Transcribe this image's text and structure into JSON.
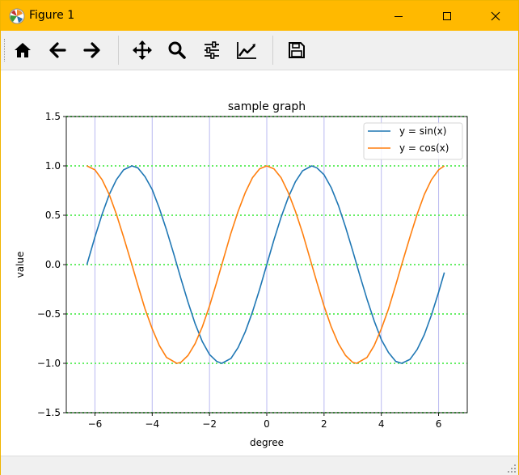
{
  "window": {
    "title": "Figure 1",
    "controls": [
      "minimize-icon",
      "maximize-icon",
      "close-icon"
    ]
  },
  "toolbar": {
    "buttons": [
      {
        "name": "home",
        "icon": "home-icon"
      },
      {
        "name": "back",
        "icon": "arrow-left-icon"
      },
      {
        "name": "forward",
        "icon": "arrow-right-icon"
      },
      {
        "name": "pan",
        "icon": "move-icon"
      },
      {
        "name": "zoom",
        "icon": "magnifier-icon"
      },
      {
        "name": "configure-subplots",
        "icon": "sliders-icon"
      },
      {
        "name": "edit-axis",
        "icon": "line-chart-icon"
      },
      {
        "name": "save",
        "icon": "floppy-disk-icon"
      }
    ]
  },
  "chart_data": {
    "type": "line",
    "title": "sample graph",
    "xlabel": "degree",
    "ylabel": "value",
    "xlim": [
      -7.0,
      7.0
    ],
    "ylim": [
      -1.5,
      1.5
    ],
    "xticks": [
      -6,
      -4,
      -2,
      0,
      2,
      4,
      6
    ],
    "xtick_labels": [
      "−6",
      "−4",
      "−2",
      "0",
      "2",
      "4",
      "6"
    ],
    "yticks": [
      1.5,
      1.0,
      0.5,
      0.0,
      -0.5,
      -1.0,
      -1.5
    ],
    "ytick_labels": [
      "1.5",
      "1.0",
      "0.5",
      "0.0",
      "−0.5",
      "−1.0",
      "−1.5"
    ],
    "grid": {
      "x": true,
      "y": true
    },
    "legend": "upper right",
    "series": [
      {
        "name": "y = sin(x)",
        "color": "#1f77b4",
        "x": [
          -6.28,
          -6.0,
          -5.75,
          -5.5,
          -5.25,
          -5.0,
          -4.71,
          -4.5,
          -4.25,
          -4.0,
          -3.75,
          -3.5,
          -3.25,
          -3.0,
          -2.75,
          -2.5,
          -2.25,
          -2.0,
          -1.75,
          -1.57,
          -1.25,
          -1.0,
          -0.75,
          -0.5,
          -0.25,
          0.0,
          0.25,
          0.5,
          0.75,
          1.0,
          1.25,
          1.57,
          1.75,
          2.0,
          2.25,
          2.5,
          2.75,
          3.0,
          3.25,
          3.5,
          3.75,
          4.0,
          4.25,
          4.5,
          4.71,
          5.0,
          5.25,
          5.5,
          5.75,
          6.0,
          6.2
        ],
        "y": [
          0.0,
          0.28,
          0.51,
          0.71,
          0.86,
          0.96,
          1.0,
          0.98,
          0.89,
          0.76,
          0.57,
          0.35,
          0.11,
          -0.14,
          -0.38,
          -0.6,
          -0.78,
          -0.91,
          -0.98,
          -1.0,
          -0.95,
          -0.84,
          -0.68,
          -0.48,
          -0.25,
          0.0,
          0.25,
          0.48,
          0.68,
          0.84,
          0.95,
          1.0,
          0.98,
          0.91,
          0.78,
          0.6,
          0.38,
          0.14,
          -0.11,
          -0.35,
          -0.57,
          -0.76,
          -0.89,
          -0.98,
          -1.0,
          -0.96,
          -0.86,
          -0.71,
          -0.51,
          -0.28,
          -0.08
        ]
      },
      {
        "name": "y = cos(x)",
        "color": "#ff7f0e",
        "x": [
          -6.28,
          -6.0,
          -5.75,
          -5.5,
          -5.25,
          -5.0,
          -4.71,
          -4.5,
          -4.25,
          -4.0,
          -3.75,
          -3.5,
          -3.14,
          -3.0,
          -2.75,
          -2.5,
          -2.25,
          -2.0,
          -1.75,
          -1.5,
          -1.25,
          -1.0,
          -0.75,
          -0.5,
          -0.25,
          0.0,
          0.25,
          0.5,
          0.75,
          1.0,
          1.25,
          1.5,
          1.75,
          2.0,
          2.25,
          2.5,
          2.75,
          3.0,
          3.14,
          3.5,
          3.75,
          4.0,
          4.25,
          4.5,
          4.71,
          5.0,
          5.25,
          5.5,
          5.75,
          6.0,
          6.2
        ],
        "y": [
          1.0,
          0.96,
          0.86,
          0.71,
          0.51,
          0.28,
          0.0,
          -0.21,
          -0.45,
          -0.65,
          -0.82,
          -0.94,
          -1.0,
          -0.99,
          -0.92,
          -0.8,
          -0.63,
          -0.42,
          -0.18,
          0.07,
          0.32,
          0.54,
          0.73,
          0.88,
          0.97,
          1.0,
          0.97,
          0.88,
          0.73,
          0.54,
          0.32,
          0.07,
          -0.18,
          -0.42,
          -0.63,
          -0.8,
          -0.92,
          -0.99,
          -1.0,
          -0.94,
          -0.82,
          -0.65,
          -0.45,
          -0.21,
          0.0,
          0.28,
          0.51,
          0.71,
          0.86,
          0.96,
          1.0
        ]
      }
    ],
    "colors": {
      "vertical_grid": "#b9b9f0",
      "horizontal_grid": "#66ee66",
      "axis": "#000000"
    }
  }
}
